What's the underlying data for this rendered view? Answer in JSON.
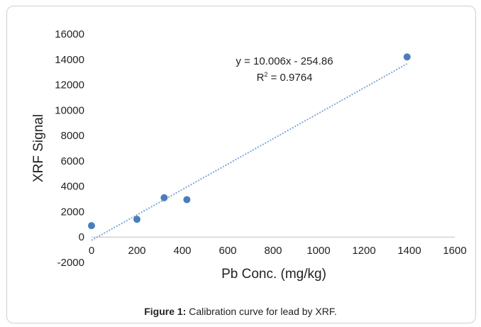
{
  "chart_data": {
    "type": "scatter",
    "xlabel": "Pb Conc. (mg/kg)",
    "ylabel": "XRF Signal",
    "xlim": [
      0,
      1600
    ],
    "ylim": [
      -2000,
      16000
    ],
    "x_ticks": [
      "0",
      "200",
      "400",
      "600",
      "800",
      "1000",
      "1200",
      "1400",
      "1600"
    ],
    "y_ticks": [
      "-2000",
      "0",
      "2000",
      "4000",
      "6000",
      "8000",
      "10000",
      "12000",
      "14000",
      "16000"
    ],
    "grid": false,
    "series": [
      {
        "color": "#4a7ebb",
        "points": [
          {
            "x": 0,
            "y": 900
          },
          {
            "x": 200,
            "y": 1400
          },
          {
            "x": 320,
            "y": 3100
          },
          {
            "x": 420,
            "y": 2950
          },
          {
            "x": 1390,
            "y": 14200
          }
        ]
      }
    ],
    "trendline": {
      "slope": 10.006,
      "intercept": -254.86,
      "x_range": [
        0,
        1390
      ],
      "color": "#7fa7d8",
      "equation_text": "y = 10.006x - 254.86",
      "r2_label": "R",
      "r2_exponent": "2",
      "r2_value_text": " = 0.9764"
    }
  },
  "caption": {
    "label": "Figure 1:",
    "text": " Calibration curve for lead by XRF."
  }
}
